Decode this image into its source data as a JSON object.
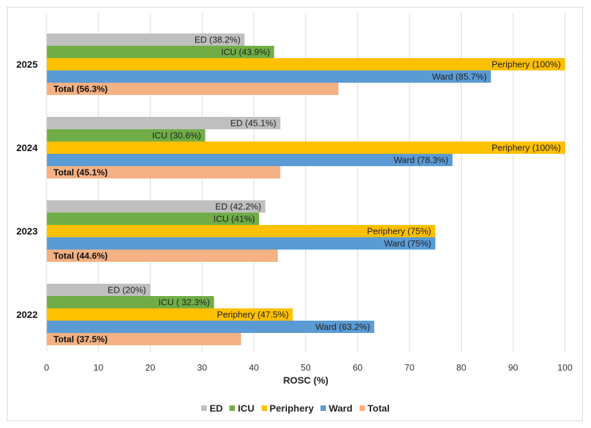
{
  "chart_data": {
    "type": "bar",
    "orientation": "horizontal",
    "title": "",
    "xlabel": "ROSC (%)",
    "ylabel": "",
    "xlim": [
      0,
      100
    ],
    "xticks": [
      0,
      10,
      20,
      30,
      40,
      50,
      60,
      70,
      80,
      90,
      100
    ],
    "grid": "vertical",
    "legend_position": "bottom",
    "categories": [
      "2025",
      "2024",
      "2023",
      "2022"
    ],
    "series": [
      {
        "name": "ED",
        "color": "#bfbfbf",
        "values": [
          38.2,
          45.1,
          42.2,
          20
        ],
        "labels": [
          "ED (38.2%)",
          "ED  (45.1%)",
          "ED (42.2%)",
          "ED (20%)"
        ]
      },
      {
        "name": "ICU",
        "color": "#70ad47",
        "values": [
          43.9,
          30.6,
          41,
          32.3
        ],
        "labels": [
          "ICU (43.9%)",
          "ICU  (30.6%)",
          "ICU (41%)",
          "ICU ( 32.3%)"
        ]
      },
      {
        "name": "Periphery",
        "color": "#ffc000",
        "values": [
          100,
          100,
          75,
          47.5
        ],
        "labels": [
          "Periphery (100%)",
          "Periphery (100%)",
          "Periphery (75%)",
          "Periphery (47.5%)"
        ]
      },
      {
        "name": "Ward",
        "color": "#5b9bd5",
        "values": [
          85.7,
          78.3,
          75,
          63.2
        ],
        "labels": [
          "Ward (85.7%)",
          "Ward (78.3%)",
          "Ward (75%)",
          "Ward (63.2%)"
        ]
      },
      {
        "name": "Total",
        "color": "#f4b183",
        "values": [
          56.3,
          45.1,
          44.6,
          37.5
        ],
        "labels": [
          "Total (56.3%)",
          "Total (45.1%)",
          "Total (44.6%)",
          "Total (37.5%)"
        ]
      }
    ]
  }
}
